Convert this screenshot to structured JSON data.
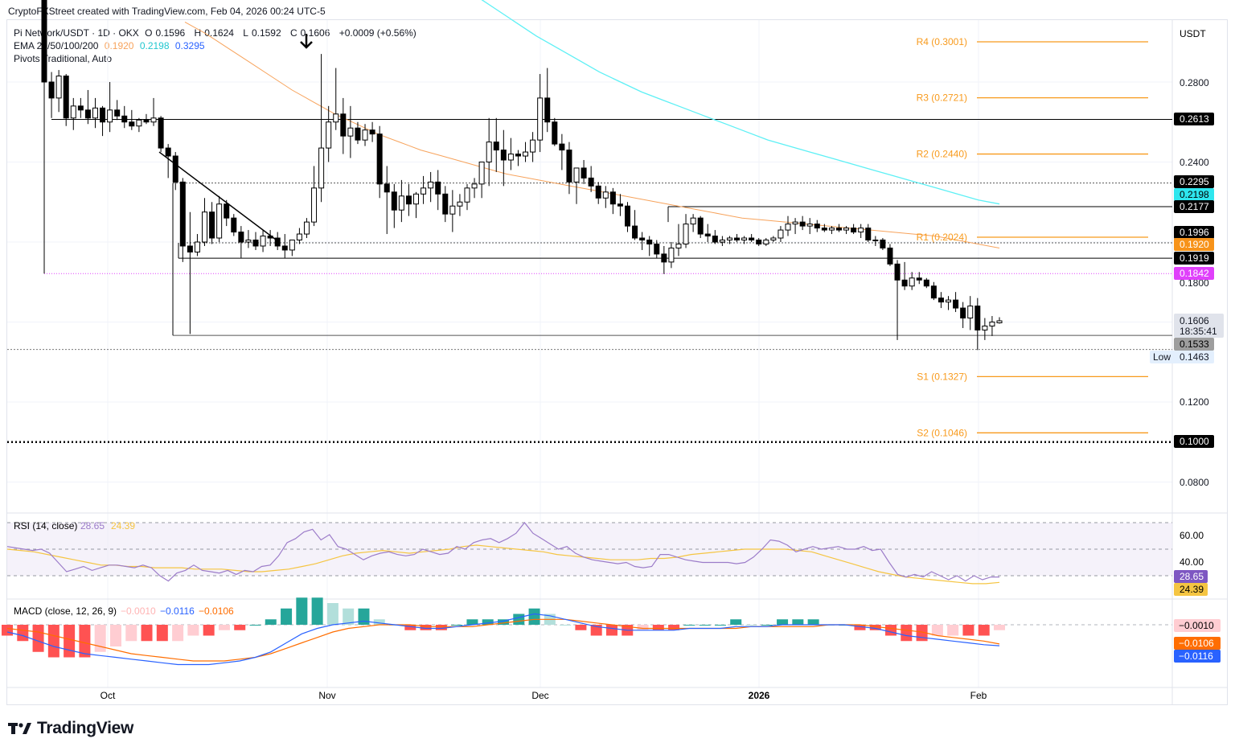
{
  "header": {
    "credit": "CryptoFXStreet created with TradingView.com, Feb 04, 2026 00:24 UTC-5",
    "symbol": "Pi Network/USDT · 1D · OKX",
    "ohlc": {
      "o_label": "O",
      "o": "0.1596",
      "h_label": "H",
      "h": "0.1624",
      "l_label": "L",
      "l": "0.1592",
      "c_label": "C",
      "c": "0.1606",
      "change": "+0.0009 (+0.56%)"
    },
    "ema_label": "EMA 20/50/100/200",
    "ema_values": [
      "0.1920",
      "0.2198",
      "0.3295"
    ],
    "pivots_label": "Pivots Traditional, Auto"
  },
  "colors": {
    "up": "#ffffff",
    "down": "#000000",
    "ema50": "#f7a35c",
    "ema100": "#5ef0f5",
    "ema200": "#2962ff",
    "pivot": "#f89a1c",
    "rsi": "#9c7cc9",
    "rsi_ma": "#f5c542",
    "macd": "#2962ff",
    "signal": "#ff6d00",
    "hist_up_strong": "#26a69a",
    "hist_up_weak": "#b2dfdb",
    "hist_down_strong": "#ff5252",
    "hist_down_weak": "#ffcdd2",
    "magenta": "#e040fb"
  },
  "price_axis": {
    "currency": "USDT",
    "ticks": [
      "0.2800",
      "0.2400",
      "0.1800",
      "0.1200",
      "0.0800"
    ]
  },
  "price_labels": {
    "resistance_1": "0.2613",
    "level_2295": "0.2295",
    "ema100_value": "0.2198",
    "level_2177": "0.2177",
    "level_1996": "0.1996",
    "ema50_value": "0.1920",
    "level_1919": "0.1919",
    "level_1842": "0.1842",
    "last_price": "0.1606",
    "countdown": "18:35:41",
    "level_1533": "0.1533",
    "low_label": "Low",
    "low_value": "0.1463",
    "level_1000": "0.1000"
  },
  "pivots": [
    {
      "label": "R4 (0.3001)",
      "value": 0.3001
    },
    {
      "label": "R3 (0.2721)",
      "value": 0.2721
    },
    {
      "label": "R2 (0.2440)",
      "value": 0.244
    },
    {
      "label": "R1 (0.2024)",
      "value": 0.2024
    },
    {
      "label": "S1 (0.1327)",
      "value": 0.1327
    },
    {
      "label": "S2 (0.1046)",
      "value": 0.1046
    }
  ],
  "time_axis": {
    "ticks": [
      "Oct",
      "Nov",
      "Dec",
      "2026",
      "Feb"
    ]
  },
  "rsi": {
    "label": "RSI (14, close)",
    "value": "28.65",
    "ma_value": "24.39",
    "ticks": [
      "60.00",
      "40.00"
    ]
  },
  "macd": {
    "label": "MACD (close, 12, 26, 9)",
    "hist": "−0.0010",
    "macd": "−0.0116",
    "signal": "−0.0106"
  },
  "chart_data": {
    "type": "candlestick",
    "x_label": "Date",
    "y_label": "",
    "y_range": [
      0.07,
      0.32
    ],
    "candles_ohlc": [
      [
        0.322,
        0.33,
        0.272,
        0.28
      ],
      [
        0.28,
        0.285,
        0.262,
        0.272
      ],
      [
        0.272,
        0.286,
        0.265,
        0.283
      ],
      [
        0.283,
        0.284,
        0.258,
        0.262
      ],
      [
        0.262,
        0.272,
        0.256,
        0.268
      ],
      [
        0.268,
        0.272,
        0.262,
        0.266
      ],
      [
        0.266,
        0.276,
        0.259,
        0.262
      ],
      [
        0.262,
        0.272,
        0.257,
        0.267
      ],
      [
        0.267,
        0.268,
        0.253,
        0.26
      ],
      [
        0.26,
        0.28,
        0.255,
        0.266
      ],
      [
        0.266,
        0.271,
        0.261,
        0.263
      ],
      [
        0.263,
        0.268,
        0.257,
        0.26
      ],
      [
        0.26,
        0.266,
        0.256,
        0.258
      ],
      [
        0.258,
        0.262,
        0.255,
        0.261
      ],
      [
        0.261,
        0.264,
        0.259,
        0.26
      ],
      [
        0.26,
        0.272,
        0.258,
        0.262
      ],
      [
        0.262,
        0.263,
        0.245,
        0.247
      ],
      [
        0.247,
        0.249,
        0.232,
        0.243
      ],
      [
        0.243,
        0.245,
        0.226,
        0.23
      ],
      [
        0.23,
        0.232,
        0.19,
        0.198
      ],
      [
        0.198,
        0.215,
        0.154,
        0.195
      ],
      [
        0.195,
        0.204,
        0.193,
        0.2
      ],
      [
        0.2,
        0.222,
        0.198,
        0.215
      ],
      [
        0.215,
        0.22,
        0.199,
        0.202
      ],
      [
        0.202,
        0.223,
        0.2,
        0.219
      ],
      [
        0.219,
        0.221,
        0.208,
        0.212
      ],
      [
        0.212,
        0.214,
        0.203,
        0.205
      ],
      [
        0.205,
        0.208,
        0.192,
        0.2
      ],
      [
        0.2,
        0.206,
        0.197,
        0.201
      ],
      [
        0.201,
        0.205,
        0.196,
        0.198
      ],
      [
        0.198,
        0.206,
        0.195,
        0.203
      ],
      [
        0.203,
        0.206,
        0.198,
        0.202
      ],
      [
        0.202,
        0.205,
        0.196,
        0.198
      ],
      [
        0.198,
        0.204,
        0.192,
        0.196
      ],
      [
        0.196,
        0.201,
        0.193,
        0.201
      ],
      [
        0.201,
        0.207,
        0.199,
        0.204
      ],
      [
        0.204,
        0.212,
        0.202,
        0.21
      ],
      [
        0.21,
        0.238,
        0.208,
        0.227
      ],
      [
        0.227,
        0.294,
        0.22,
        0.247
      ],
      [
        0.247,
        0.268,
        0.24,
        0.26
      ],
      [
        0.26,
        0.287,
        0.256,
        0.264
      ],
      [
        0.264,
        0.272,
        0.244,
        0.253
      ],
      [
        0.253,
        0.268,
        0.242,
        0.257
      ],
      [
        0.257,
        0.26,
        0.249,
        0.251
      ],
      [
        0.251,
        0.259,
        0.248,
        0.256
      ],
      [
        0.256,
        0.26,
        0.25,
        0.254
      ],
      [
        0.254,
        0.258,
        0.222,
        0.229
      ],
      [
        0.229,
        0.238,
        0.204,
        0.225
      ],
      [
        0.225,
        0.229,
        0.207,
        0.216
      ],
      [
        0.216,
        0.231,
        0.21,
        0.223
      ],
      [
        0.223,
        0.229,
        0.213,
        0.219
      ],
      [
        0.219,
        0.225,
        0.212,
        0.224
      ],
      [
        0.224,
        0.233,
        0.219,
        0.227
      ],
      [
        0.227,
        0.235,
        0.22,
        0.23
      ],
      [
        0.23,
        0.236,
        0.216,
        0.224
      ],
      [
        0.224,
        0.228,
        0.21,
        0.214
      ],
      [
        0.214,
        0.226,
        0.205,
        0.218
      ],
      [
        0.218,
        0.224,
        0.213,
        0.22
      ],
      [
        0.22,
        0.229,
        0.216,
        0.227
      ],
      [
        0.227,
        0.232,
        0.222,
        0.229
      ],
      [
        0.229,
        0.236,
        0.222,
        0.24
      ],
      [
        0.24,
        0.262,
        0.228,
        0.25
      ],
      [
        0.25,
        0.262,
        0.235,
        0.246
      ],
      [
        0.246,
        0.256,
        0.228,
        0.241
      ],
      [
        0.241,
        0.252,
        0.236,
        0.244
      ],
      [
        0.244,
        0.246,
        0.238,
        0.243
      ],
      [
        0.243,
        0.25,
        0.24,
        0.245
      ],
      [
        0.245,
        0.255,
        0.24,
        0.251
      ],
      [
        0.251,
        0.284,
        0.245,
        0.272
      ],
      [
        0.272,
        0.287,
        0.255,
        0.26
      ],
      [
        0.26,
        0.262,
        0.248,
        0.249
      ],
      [
        0.249,
        0.254,
        0.236,
        0.246
      ],
      [
        0.246,
        0.25,
        0.224,
        0.23
      ],
      [
        0.23,
        0.234,
        0.219,
        0.237
      ],
      [
        0.237,
        0.241,
        0.229,
        0.232
      ],
      [
        0.232,
        0.238,
        0.225,
        0.228
      ],
      [
        0.228,
        0.23,
        0.219,
        0.222
      ],
      [
        0.222,
        0.228,
        0.217,
        0.225
      ],
      [
        0.225,
        0.227,
        0.214,
        0.219
      ],
      [
        0.219,
        0.224,
        0.213,
        0.218
      ],
      [
        0.218,
        0.22,
        0.205,
        0.208
      ],
      [
        0.208,
        0.216,
        0.201,
        0.202
      ],
      [
        0.202,
        0.205,
        0.196,
        0.201
      ],
      [
        0.201,
        0.203,
        0.193,
        0.199
      ],
      [
        0.199,
        0.201,
        0.192,
        0.194
      ],
      [
        0.194,
        0.198,
        0.184,
        0.19
      ],
      [
        0.19,
        0.2,
        0.187,
        0.197
      ],
      [
        0.197,
        0.209,
        0.193,
        0.199
      ],
      [
        0.199,
        0.214,
        0.197,
        0.209
      ],
      [
        0.209,
        0.214,
        0.205,
        0.212
      ],
      [
        0.212,
        0.213,
        0.202,
        0.204
      ],
      [
        0.204,
        0.209,
        0.2,
        0.203
      ],
      [
        0.203,
        0.206,
        0.199,
        0.2
      ],
      [
        0.2,
        0.203,
        0.198,
        0.201
      ],
      [
        0.201,
        0.203,
        0.199,
        0.202
      ],
      [
        0.202,
        0.204,
        0.2,
        0.201
      ],
      [
        0.201,
        0.203,
        0.199,
        0.202
      ],
      [
        0.202,
        0.204,
        0.2,
        0.201
      ],
      [
        0.201,
        0.202,
        0.198,
        0.199
      ],
      [
        0.199,
        0.202,
        0.198,
        0.201
      ],
      [
        0.201,
        0.203,
        0.2,
        0.202
      ],
      [
        0.202,
        0.208,
        0.2,
        0.206
      ],
      [
        0.206,
        0.213,
        0.203,
        0.209
      ],
      [
        0.209,
        0.212,
        0.204,
        0.21
      ],
      [
        0.21,
        0.213,
        0.206,
        0.208
      ],
      [
        0.208,
        0.212,
        0.204,
        0.209
      ],
      [
        0.209,
        0.211,
        0.205,
        0.207
      ],
      [
        0.207,
        0.209,
        0.205,
        0.206
      ],
      [
        0.206,
        0.208,
        0.204,
        0.207
      ],
      [
        0.207,
        0.209,
        0.205,
        0.206
      ],
      [
        0.206,
        0.208,
        0.204,
        0.207
      ],
      [
        0.207,
        0.209,
        0.204,
        0.205
      ],
      [
        0.205,
        0.209,
        0.202,
        0.207
      ],
      [
        0.207,
        0.209,
        0.2,
        0.201
      ],
      [
        0.201,
        0.203,
        0.198,
        0.201
      ],
      [
        0.201,
        0.202,
        0.196,
        0.197
      ],
      [
        0.197,
        0.199,
        0.188,
        0.189
      ],
      [
        0.189,
        0.191,
        0.151,
        0.181
      ],
      [
        0.181,
        0.19,
        0.176,
        0.178
      ],
      [
        0.178,
        0.185,
        0.176,
        0.182
      ],
      [
        0.182,
        0.185,
        0.179,
        0.181
      ],
      [
        0.181,
        0.182,
        0.177,
        0.178
      ],
      [
        0.178,
        0.18,
        0.171,
        0.172
      ],
      [
        0.172,
        0.175,
        0.167,
        0.17
      ],
      [
        0.17,
        0.173,
        0.166,
        0.171
      ],
      [
        0.171,
        0.175,
        0.165,
        0.167
      ],
      [
        0.167,
        0.17,
        0.157,
        0.162
      ],
      [
        0.162,
        0.173,
        0.156,
        0.168
      ],
      [
        0.168,
        0.172,
        0.146,
        0.156
      ],
      [
        0.156,
        0.162,
        0.151,
        0.158
      ],
      [
        0.158,
        0.163,
        0.153,
        0.16
      ],
      [
        0.1596,
        0.1624,
        0.1592,
        0.1606
      ]
    ],
    "ema50": [
      0.31,
      0.304,
      0.297,
      0.29,
      0.283,
      0.276,
      0.27,
      0.264,
      0.259,
      0.254,
      0.25,
      0.246,
      0.243,
      0.24,
      0.237,
      0.234,
      0.232,
      0.23,
      0.228,
      0.226,
      0.224,
      0.222,
      0.22,
      0.218,
      0.216,
      0.214,
      0.212,
      0.211,
      0.21,
      0.209,
      0.208,
      0.207,
      0.206,
      0.205,
      0.204,
      0.203,
      0.201,
      0.199,
      0.197
    ],
    "ema100": [
      0.345,
      0.338,
      0.331,
      0.324,
      0.317,
      0.31,
      0.303,
      0.297,
      0.291,
      0.285,
      0.28,
      0.275,
      0.271,
      0.267,
      0.263,
      0.259,
      0.255,
      0.251,
      0.248,
      0.245,
      0.242,
      0.239,
      0.236,
      0.233,
      0.23,
      0.227,
      0.224,
      0.221,
      0.219
    ],
    "rsi_values": [
      52,
      51,
      50,
      49,
      50,
      47,
      40,
      33,
      35,
      37,
      34,
      36,
      38,
      38,
      37,
      36,
      38,
      36,
      30,
      26,
      32,
      34,
      38,
      34,
      33,
      32,
      34,
      31,
      34,
      33,
      37,
      38,
      45,
      55,
      58,
      63,
      65,
      57,
      61,
      52,
      50,
      46,
      42,
      45,
      47,
      48,
      46,
      45,
      46,
      50,
      48,
      46,
      47,
      52,
      50,
      55,
      57,
      58,
      55,
      58,
      62,
      70,
      62,
      58,
      54,
      50,
      52,
      47,
      44,
      42,
      41,
      40,
      39,
      40,
      37,
      36,
      37,
      46,
      46,
      44,
      42,
      41,
      40,
      40,
      40,
      40,
      39,
      40,
      44,
      50,
      57,
      56,
      53,
      48,
      50,
      52,
      50,
      51,
      52,
      50,
      50,
      52,
      49,
      50,
      40,
      31,
      29,
      31,
      29,
      33,
      30,
      27,
      30,
      26,
      30,
      27,
      29,
      29
    ],
    "rsi_ma_values": [
      50,
      49,
      48,
      46,
      44,
      42,
      40,
      38,
      38,
      37,
      37,
      36,
      36,
      36,
      35,
      35,
      35,
      34,
      33,
      33,
      34,
      35,
      37,
      39,
      42,
      45,
      47,
      48,
      49,
      48,
      47,
      48,
      49,
      50,
      52,
      53,
      52,
      51,
      50,
      49,
      48,
      46,
      45,
      44,
      43,
      42,
      42,
      42,
      43,
      43,
      44,
      46,
      47,
      48,
      49,
      50,
      50,
      50,
      50,
      49,
      48,
      45,
      42,
      39,
      36,
      33,
      31,
      29,
      28,
      27,
      26,
      25,
      24,
      24,
      25
    ],
    "macd_values": [
      -0.004,
      -0.006,
      -0.009,
      -0.012,
      -0.014,
      -0.016,
      -0.017,
      -0.018,
      -0.019,
      -0.02,
      -0.021,
      -0.022,
      -0.022,
      -0.022,
      -0.021,
      -0.02,
      -0.018,
      -0.015,
      -0.01,
      -0.005,
      -0.002,
      0.0,
      0.001,
      0.002,
      0.001,
      0.0,
      -0.001,
      -0.002,
      -0.002,
      -0.001,
      0.0,
      0.001,
      0.002,
      0.004,
      0.006,
      0.005,
      0.003,
      0.001,
      -0.001,
      -0.002,
      -0.003,
      -0.003,
      -0.003,
      -0.003,
      -0.002,
      -0.002,
      -0.002,
      -0.001,
      -0.001,
      -0.001,
      0.0,
      0.0,
      0.0,
      0.0,
      0.0,
      -0.001,
      -0.002,
      -0.004,
      -0.006,
      -0.007,
      -0.008,
      -0.009,
      -0.01,
      -0.011,
      -0.0116
    ],
    "signal_values": [
      -0.002,
      -0.003,
      -0.004,
      -0.006,
      -0.008,
      -0.01,
      -0.012,
      -0.014,
      -0.016,
      -0.017,
      -0.018,
      -0.019,
      -0.02,
      -0.02,
      -0.02,
      -0.019,
      -0.018,
      -0.016,
      -0.013,
      -0.01,
      -0.007,
      -0.004,
      -0.002,
      -0.001,
      0.0,
      0.0,
      0.0,
      -0.001,
      -0.001,
      -0.001,
      -0.001,
      0.0,
      0.001,
      0.002,
      0.003,
      0.003,
      0.003,
      0.002,
      0.001,
      0.0,
      -0.001,
      -0.002,
      -0.002,
      -0.002,
      -0.002,
      -0.002,
      -0.002,
      -0.002,
      -0.001,
      -0.001,
      -0.001,
      -0.001,
      -0.001,
      0.0,
      0.0,
      0.0,
      -0.001,
      -0.002,
      -0.003,
      -0.004,
      -0.006,
      -0.007,
      -0.008,
      -0.009,
      -0.0106
    ]
  }
}
